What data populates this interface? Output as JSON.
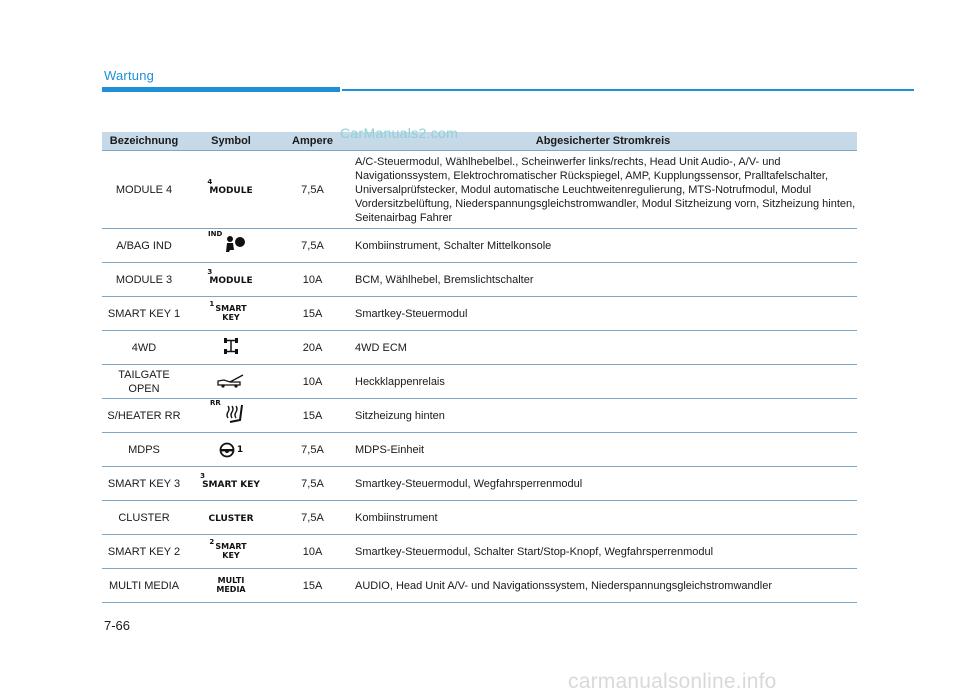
{
  "header": {
    "section_title": "Wartung"
  },
  "watermark": "CarManuals2.com",
  "table": {
    "headers": [
      "Bezeichnung",
      "Symbol",
      "Ampere",
      "Abgesicherter Stromkreis"
    ],
    "rows": [
      {
        "name": "MODULE 4",
        "symbol": "MODULE",
        "symbol_sup": "4",
        "icon": "module-4-icon",
        "ampere": "7,5A",
        "circuit": "A/C-Steuermodul, Wählhebelbel., Scheinwerfer links/rechts, Head Unit Audio-, A/V- und Navigationssystem, Elektrochromatischer Rückspiegel, AMP, Kupplungssensor, Pralltafelschalter, Universalprüfstecker, Modul automatische Leuchtweitenregulierung, MTS-Notrufmodul, Modul Vordersitzbelüftung, Niederspannungsgleichstromwandler, Modul Sitzheizung vorn, Sitzheizung hinten, Seitenairbag Fahrer"
      },
      {
        "name": "A/BAG IND",
        "symbol_sup": "IND",
        "icon": "airbag-indicator-icon",
        "ampere": "7,5A",
        "circuit": "Kombiinstrument, Schalter Mittelkonsole"
      },
      {
        "name": "MODULE 3",
        "symbol": "MODULE",
        "symbol_sup": "3",
        "icon": "module-3-icon",
        "ampere": "10A",
        "circuit": "BCM, Wählhebel, Bremslichtschalter"
      },
      {
        "name": "SMART KEY 1",
        "symbol_l1": "SMART",
        "symbol_l2": "KEY",
        "symbol_sup": "1",
        "icon": "smart-key-1-icon",
        "ampere": "15A",
        "circuit": "Smartkey-Steuermodul"
      },
      {
        "name": "4WD",
        "icon": "four-wheel-drive-icon",
        "ampere": "20A",
        "circuit": "4WD ECM"
      },
      {
        "name_l1": "TAILGATE",
        "name_l2": "OPEN",
        "icon": "tailgate-open-icon",
        "ampere": "10A",
        "circuit": "Heckklappenrelais"
      },
      {
        "name": "S/HEATER RR",
        "symbol_sup": "RR",
        "icon": "seat-heater-icon",
        "ampere": "15A",
        "circuit": "Sitzheizung hinten"
      },
      {
        "name": "MDPS",
        "symbol_suffix": "1",
        "icon": "steering-wheel-icon",
        "ampere": "7,5A",
        "circuit": "MDPS-Einheit"
      },
      {
        "name": "SMART KEY 3",
        "symbol": "SMART KEY",
        "symbol_sup": "3",
        "icon": "smart-key-3-icon",
        "ampere": "7,5A",
        "circuit": "Smartkey-Steuermodul, Wegfahrsperrenmodul"
      },
      {
        "name": "CLUSTER",
        "symbol": "CLUSTER",
        "icon": "cluster-icon",
        "ampere": "7,5A",
        "circuit": "Kombiinstrument"
      },
      {
        "name": "SMART KEY 2",
        "symbol_l1": "SMART",
        "symbol_l2": "KEY",
        "symbol_sup": "2",
        "icon": "smart-key-2-icon",
        "ampere": "10A",
        "circuit": "Smartkey-Steuermodul, Schalter Start/Stop-Knopf, Wegfahrsperrenmodul"
      },
      {
        "name": "MULTI MEDIA",
        "symbol_l1": "MULTI",
        "symbol_l2": "MEDIA",
        "icon": "multimedia-icon",
        "ampere": "15A",
        "circuit": "AUDIO, Head Unit A/V- und Navigationssystem, Niederspannungsgleichstromwandler"
      }
    ]
  },
  "footer": {
    "page_number": "7-66",
    "site_mark": "carmanualsonline.info"
  },
  "colors": {
    "accent": "#1f8fd8",
    "header_bg": "#c5d9e8",
    "row_rule": "#7fa6c4"
  }
}
